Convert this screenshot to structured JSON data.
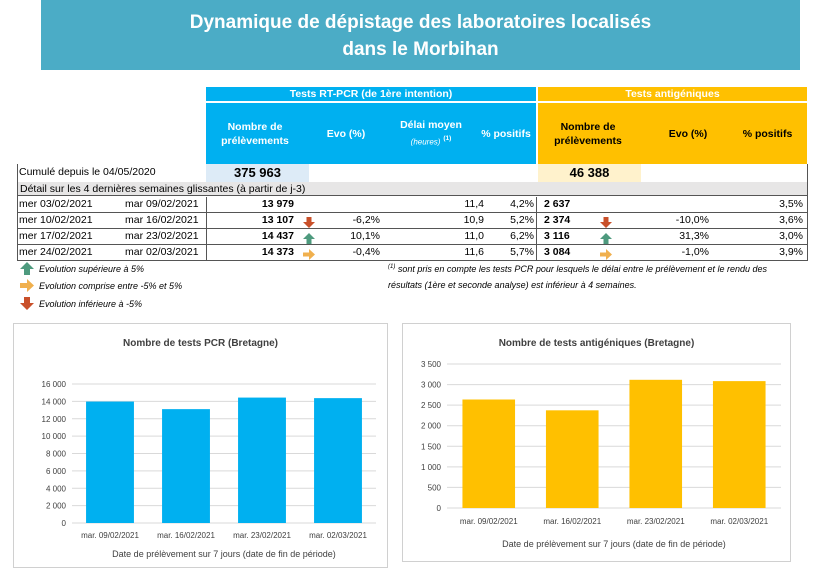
{
  "title": {
    "line1": "Dynamique de dépistage des laboratoires localisés",
    "line2": "dans le Morbihan"
  },
  "groups": {
    "pcr": "Tests RT-PCR (de 1ère intention)",
    "antigen": "Tests antigéniques"
  },
  "headers": {
    "pcr_nb": "Nombre de prélèvements",
    "pcr_evo": "Evo (%)",
    "pcr_delai": "Délai moyen",
    "pcr_delai_unit": "(heures)",
    "pcr_delai_note": "(1)",
    "pcr_pos": "% positifs",
    "ag_nb": "Nombre de prélèvements",
    "ag_evo": "Evo (%)",
    "ag_pos": "% positifs"
  },
  "cumul": {
    "label": "Cumulé depuis le 04/05/2020",
    "pcr": "375 963",
    "ag": "46 388"
  },
  "detail_label": "Détail sur les 4 dernières semaines glissantes (à partir de j-3)",
  "colors": {
    "up": "#4E9A7E",
    "flat": "#F0B04E",
    "down": "#C9502A",
    "blue": "#00B0F0",
    "yellow": "#FFC000",
    "banner": "#4BACC6"
  },
  "rows": [
    {
      "start": "mer 03/02/2021",
      "end": "mar 09/02/2021",
      "pcr_nb": "13 979",
      "pcr_arrow": "",
      "pcr_evo": "",
      "delai": "11,4",
      "pcr_pos": "4,2%",
      "ag_nb": "2 637",
      "ag_arrow": "",
      "ag_evo": "",
      "ag_pos": "3,5%"
    },
    {
      "start": "mer 10/02/2021",
      "end": "mar 16/02/2021",
      "pcr_nb": "13 107",
      "pcr_arrow": "down",
      "pcr_evo": "-6,2%",
      "delai": "10,9",
      "pcr_pos": "5,2%",
      "ag_nb": "2 374",
      "ag_arrow": "down",
      "ag_evo": "-10,0%",
      "ag_pos": "3,6%"
    },
    {
      "start": "mer 17/02/2021",
      "end": "mar 23/02/2021",
      "pcr_nb": "14 437",
      "pcr_arrow": "up",
      "pcr_evo": "10,1%",
      "delai": "11,0",
      "pcr_pos": "6,2%",
      "ag_nb": "3 116",
      "ag_arrow": "up",
      "ag_evo": "31,3%",
      "ag_pos": "3,0%"
    },
    {
      "start": "mer 24/02/2021",
      "end": "mar 02/03/2021",
      "pcr_nb": "14 373",
      "pcr_arrow": "flat",
      "pcr_evo": "-0,4%",
      "delai": "11,6",
      "pcr_pos": "5,7%",
      "ag_nb": "3 084",
      "ag_arrow": "flat",
      "ag_evo": "-1,0%",
      "ag_pos": "3,9%"
    }
  ],
  "legend": {
    "up": "Evolution supérieure à 5%",
    "flat": "Evolution comprise entre -5% et 5%",
    "down": "Evolution inférieure à -5%"
  },
  "footnote": {
    "mark": "(1)",
    "text": " sont pris en compte les tests PCR pour lesquels le délai entre le prélèvement et le rendu des résultats (1ère et seconde analyse) est inférieur à 4 semaines."
  },
  "chart_data": [
    {
      "type": "bar",
      "title": "Nombre de tests PCR (Bretagne)",
      "categories": [
        "mar. 09/02/2021",
        "mar. 16/02/2021",
        "mar. 23/02/2021",
        "mar. 02/03/2021"
      ],
      "values": [
        13979,
        13107,
        14437,
        14373
      ],
      "xlabel": "Date de prélèvement sur 7 jours (date de fin de période)",
      "ylabel": "",
      "ylim": [
        0,
        16000
      ],
      "yticks": [
        0,
        2000,
        4000,
        6000,
        8000,
        10000,
        12000,
        14000,
        16000
      ],
      "ytick_labels": [
        "0",
        "2 000",
        "4 000",
        "6 000",
        "8 000",
        "10 000",
        "12 000",
        "14 000",
        "16 000"
      ],
      "color": "#00B0F0",
      "grid": true
    },
    {
      "type": "bar",
      "title": "Nombre de tests antigéniques (Bretagne)",
      "categories": [
        "mar. 09/02/2021",
        "mar. 16/02/2021",
        "mar. 23/02/2021",
        "mar. 02/03/2021"
      ],
      "values": [
        2637,
        2374,
        3116,
        3084
      ],
      "xlabel": "Date de prélèvement sur 7 jours (date de fin de période)",
      "ylabel": "",
      "ylim": [
        0,
        3500
      ],
      "yticks": [
        0,
        500,
        1000,
        1500,
        2000,
        2500,
        3000,
        3500
      ],
      "ytick_labels": [
        "0",
        "500",
        "1 000",
        "1 500",
        "2 000",
        "2 500",
        "3 000",
        "3 500"
      ],
      "color": "#FFC000",
      "grid": true
    }
  ]
}
